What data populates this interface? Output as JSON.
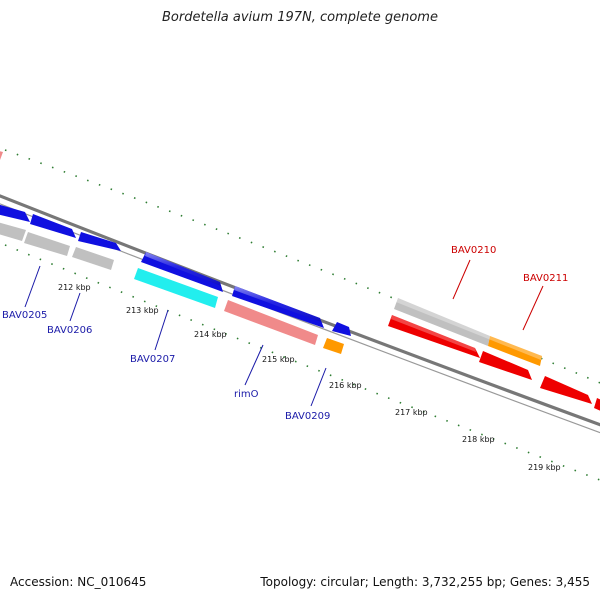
{
  "title": "Bordetella avium 197N, complete genome",
  "footer": {
    "accession": "Accession: NC_010645",
    "topology": "Topology: circular; Length: 3,732,255 bp; Genes: 3,455"
  },
  "colors": {
    "backbone": "#7a7a7a",
    "tick": "#2e7d32",
    "label_blue": "#1a1aa8",
    "label_red": "#cc0000",
    "gene_blue": "#1010e0",
    "gene_gray": "#bdbdbd",
    "gene_cyan": "#22eeee",
    "gene_pink": "#f08a8a",
    "gene_orange": "#ff9900",
    "gene_red": "#ee0000"
  },
  "ticks": [
    {
      "label": "212 kbp"
    },
    {
      "label": "213 kbp"
    },
    {
      "label": "214 kbp"
    },
    {
      "label": "215 kbp"
    },
    {
      "label": "216 kbp"
    },
    {
      "label": "217 kbp"
    },
    {
      "label": "218 kbp"
    },
    {
      "label": "219 kbp"
    }
  ],
  "gene_labels": [
    {
      "name": "BAV0205",
      "color": "blue"
    },
    {
      "name": "BAV0206",
      "color": "blue"
    },
    {
      "name": "BAV0207",
      "color": "blue"
    },
    {
      "name": "rimO",
      "color": "blue"
    },
    {
      "name": "BAV0209",
      "color": "blue"
    },
    {
      "name": "BAV0210",
      "color": "red"
    },
    {
      "name": "BAV0211",
      "color": "red"
    }
  ]
}
